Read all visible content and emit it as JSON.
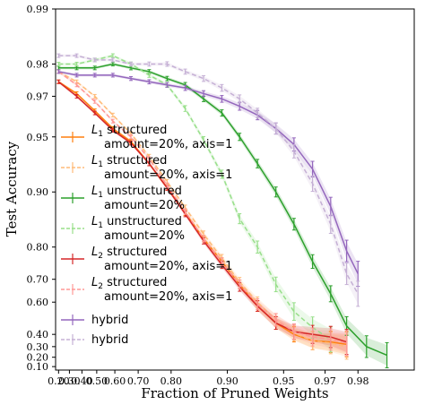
{
  "chart_data": {
    "type": "line",
    "title": "",
    "xlabel": "Fraction of Pruned Weights",
    "ylabel": "Test Accuracy",
    "x_scale": "log(1 - x)",
    "y_scale": "log(1 - y)",
    "xlim": [
      0.17,
      0.99
    ],
    "ylim": [
      0.06,
      0.99
    ],
    "x_ticks": [
      0.2,
      0.3,
      0.4,
      0.5,
      0.6,
      0.7,
      0.8,
      0.9,
      0.95,
      0.97,
      0.98
    ],
    "x_tick_labels": [
      "0.20",
      "0.30",
      "0.40",
      "0.50",
      "0.60",
      "0.70",
      "0.80",
      "0.90",
      "0.95",
      "0.97",
      "0.98"
    ],
    "y_ticks": [
      0.99,
      0.98,
      0.97,
      0.95,
      0.9,
      0.8,
      0.7,
      0.6,
      0.4,
      0.3,
      0.2,
      0.1
    ],
    "y_tick_labels": [
      "0.99",
      "0.98",
      "0.97",
      "0.95",
      "0.90",
      "0.80",
      "0.70",
      "0.60",
      "0.40",
      "0.30",
      "0.20",
      "0.10"
    ],
    "grid": false,
    "legend_position": "lower-left",
    "series": [
      {
        "name": "L1 structured amount=20%, axis=1",
        "legend_main": "L",
        "legend_sub": "1",
        "legend_line1": " structured",
        "legend_line2": "amount=20%, axis=1",
        "color": "#ff7f0e",
        "dashed": false,
        "x": [
          0.2,
          0.36,
          0.488,
          0.59,
          0.672,
          0.738,
          0.79,
          0.832,
          0.866,
          0.893,
          0.914,
          0.931,
          0.945,
          0.956,
          0.965,
          0.972,
          0.977
        ],
        "y": [
          0.975,
          0.971,
          0.964,
          0.955,
          0.947,
          0.93,
          0.905,
          0.87,
          0.82,
          0.76,
          0.68,
          0.58,
          0.48,
          0.4,
          0.35,
          0.34,
          0.32
        ]
      },
      {
        "name": "L1 structured amount=20%, axis=1",
        "legend_main": "L",
        "legend_sub": "1",
        "legend_line1": " structured",
        "legend_line2": "amount=20%, axis=1",
        "color": "#ffbb78",
        "dashed": true,
        "x": [
          0.2,
          0.36,
          0.488,
          0.59,
          0.672,
          0.738,
          0.79,
          0.832,
          0.866,
          0.893,
          0.914,
          0.931,
          0.945,
          0.956,
          0.965,
          0.972,
          0.977
        ],
        "y": [
          0.978,
          0.975,
          0.97,
          0.962,
          0.952,
          0.936,
          0.912,
          0.878,
          0.83,
          0.77,
          0.69,
          0.6,
          0.5,
          0.41,
          0.35,
          0.33,
          0.3
        ]
      },
      {
        "name": "L1 unstructured amount=20%",
        "legend_main": "L",
        "legend_sub": "1",
        "legend_line1": " unstructured",
        "legend_line2": "amount=20%",
        "color": "#2ca02c",
        "dashed": false,
        "x": [
          0.2,
          0.36,
          0.488,
          0.59,
          0.672,
          0.738,
          0.79,
          0.832,
          0.866,
          0.893,
          0.914,
          0.931,
          0.945,
          0.956,
          0.965,
          0.972,
          0.977,
          0.982,
          0.986
        ],
        "y": [
          0.979,
          0.979,
          0.979,
          0.98,
          0.979,
          0.978,
          0.976,
          0.974,
          0.969,
          0.963,
          0.95,
          0.93,
          0.9,
          0.85,
          0.76,
          0.64,
          0.46,
          0.3,
          0.22
        ]
      },
      {
        "name": "L1 unstructured amount=20%",
        "legend_main": "L",
        "legend_sub": "1",
        "legend_line1": " unstructured",
        "legend_line2": "amount=20%",
        "color": "#98df8a",
        "dashed": true,
        "x": [
          0.2,
          0.36,
          0.488,
          0.59,
          0.672,
          0.738,
          0.79,
          0.832,
          0.866,
          0.893,
          0.914,
          0.931,
          0.945,
          0.956,
          0.965,
          0.972
        ],
        "y": [
          0.98,
          0.98,
          0.981,
          0.982,
          0.98,
          0.977,
          0.974,
          0.965,
          0.948,
          0.92,
          0.86,
          0.8,
          0.68,
          0.55,
          0.45,
          0.36
        ]
      },
      {
        "name": "L2 structured amount=20%, axis=1",
        "legend_main": "L",
        "legend_sub": "2",
        "legend_line1": " structured",
        "legend_line2": "amount=20%, axis=1",
        "color": "#d62728",
        "dashed": false,
        "x": [
          0.2,
          0.36,
          0.488,
          0.59,
          0.672,
          0.738,
          0.79,
          0.832,
          0.866,
          0.893,
          0.914,
          0.931,
          0.945,
          0.956,
          0.965,
          0.972,
          0.977
        ],
        "y": [
          0.975,
          0.97,
          0.963,
          0.954,
          0.946,
          0.93,
          0.905,
          0.868,
          0.815,
          0.75,
          0.67,
          0.58,
          0.48,
          0.42,
          0.4,
          0.38,
          0.34
        ]
      },
      {
        "name": "L2 structured amount=20%, axis=1",
        "legend_main": "L",
        "legend_sub": "2",
        "legend_line1": " structured",
        "legend_line2": "amount=20%, axis=1",
        "color": "#ff9896",
        "dashed": true,
        "x": [
          0.2,
          0.36,
          0.488,
          0.59,
          0.672,
          0.738,
          0.79,
          0.832,
          0.866,
          0.893,
          0.914,
          0.931,
          0.945,
          0.956,
          0.965,
          0.972,
          0.977
        ],
        "y": [
          0.978,
          0.974,
          0.968,
          0.959,
          0.95,
          0.934,
          0.908,
          0.872,
          0.82,
          0.76,
          0.68,
          0.59,
          0.5,
          0.42,
          0.38,
          0.36,
          0.33
        ]
      },
      {
        "name": "hybrid",
        "legend_main": "hybrid",
        "legend_sub": "",
        "legend_line1": "",
        "legend_line2": "",
        "color": "#9467bd",
        "dashed": false,
        "x": [
          0.2,
          0.36,
          0.488,
          0.59,
          0.672,
          0.738,
          0.79,
          0.832,
          0.866,
          0.893,
          0.914,
          0.931,
          0.945,
          0.956,
          0.965,
          0.972,
          0.977,
          0.98
        ],
        "y": [
          0.978,
          0.977,
          0.977,
          0.977,
          0.976,
          0.975,
          0.974,
          0.973,
          0.971,
          0.969,
          0.966,
          0.962,
          0.955,
          0.945,
          0.925,
          0.88,
          0.79,
          0.72
        ]
      },
      {
        "name": "hybrid",
        "legend_main": "hybrid",
        "legend_sub": "",
        "legend_line1": "",
        "legend_line2": "",
        "color": "#c5b0d5",
        "dashed": true,
        "x": [
          0.2,
          0.36,
          0.488,
          0.59,
          0.672,
          0.738,
          0.79,
          0.832,
          0.866,
          0.893,
          0.914,
          0.931,
          0.945,
          0.956,
          0.965,
          0.972,
          0.977,
          0.98
        ],
        "y": [
          0.982,
          0.982,
          0.981,
          0.981,
          0.98,
          0.98,
          0.98,
          0.978,
          0.976,
          0.973,
          0.969,
          0.963,
          0.955,
          0.94,
          0.91,
          0.85,
          0.72,
          0.64
        ]
      }
    ]
  }
}
